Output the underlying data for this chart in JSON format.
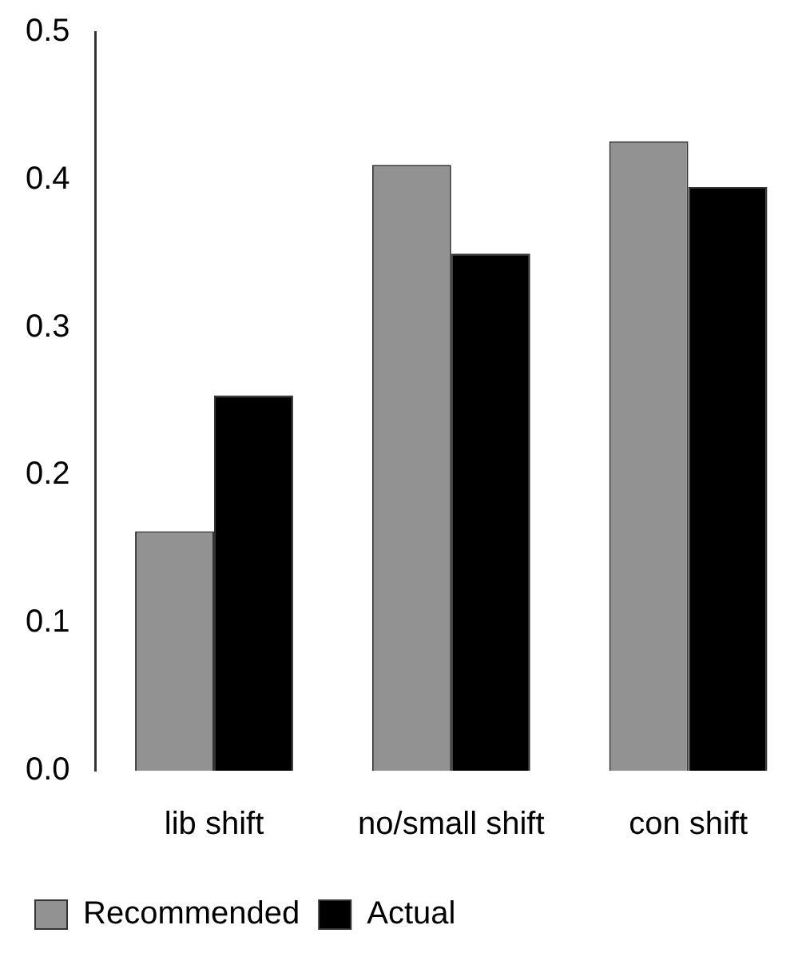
{
  "chart_data": {
    "type": "bar",
    "categories": [
      "lib shift",
      "no/small shift",
      "con shift"
    ],
    "series": [
      {
        "name": "Recommended",
        "color": "#929292",
        "values": [
          0.162,
          0.41,
          0.426
        ]
      },
      {
        "name": "Actual",
        "color": "#000000",
        "values": [
          0.254,
          0.35,
          0.395
        ]
      }
    ],
    "ylim": [
      0,
      0.5
    ],
    "yticks": [
      {
        "value": 0,
        "label": "0.0"
      },
      0.1,
      0.2,
      0.3,
      0.4,
      0.5
    ],
    "grid": false,
    "legend": "bottom left"
  }
}
